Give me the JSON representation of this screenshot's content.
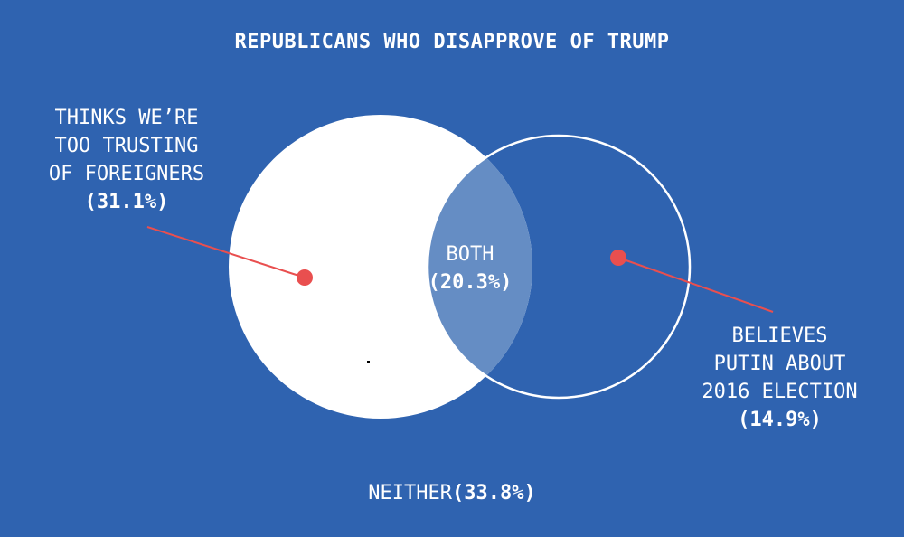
{
  "title": "REPUBLICANS WHO DISAPPROVE OF TRUMP",
  "colors": {
    "background": "#2f63b0",
    "circle_left": "#ffffff",
    "overlap": "#658dc4",
    "circle_right_stroke": "#ffffff",
    "pointer": "#e94f4f"
  },
  "sets": {
    "left": {
      "label_lines": [
        "THINKS WE’RE",
        "TOO TRUSTING",
        "OF FOREIGNERS"
      ],
      "percent": "(31.1%)",
      "value": 31.1
    },
    "right": {
      "label_lines": [
        "BELIEVES",
        "PUTIN ABOUT",
        "2016 ELECTION"
      ],
      "percent": "(14.9%)",
      "value": 14.9
    },
    "both": {
      "label": "BOTH",
      "percent": "(20.3%)",
      "value": 20.3
    },
    "neither": {
      "label": "NEITHER",
      "percent": "(33.8%)",
      "value": 33.8
    }
  }
}
